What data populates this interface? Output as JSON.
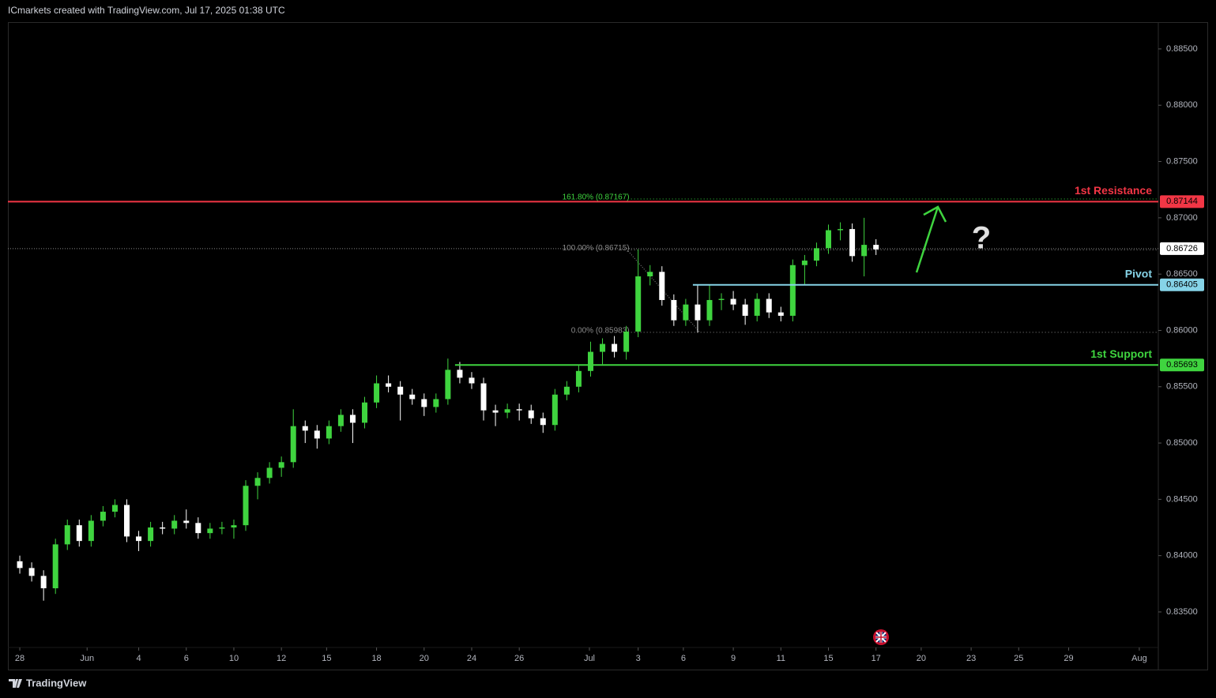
{
  "header": "ICmarkets created with TradingView.com, Jul 17, 2025 01:38 UTC",
  "footer": "TradingView",
  "chart_data": {
    "type": "candlestick",
    "up_color": "#3fd43f",
    "down_color": "#ffffff",
    "x": [
      0,
      0.5,
      1,
      1.5,
      2,
      2.5,
      3,
      3.5,
      4,
      4.5,
      5,
      5.5,
      6,
      6.5,
      7,
      7.5,
      8,
      8.5,
      9,
      9.5,
      10,
      10.5,
      11,
      11.5,
      12,
      12.5,
      13,
      13.5,
      14,
      14.5,
      15,
      15.5,
      16,
      16.5,
      17,
      17.5,
      18,
      18.5,
      19,
      19.5,
      20,
      20.5,
      21,
      21.5,
      22,
      22.5,
      23,
      23.5,
      24,
      24.5,
      25,
      25.5,
      26,
      26.5,
      27,
      27.5,
      28,
      28.5,
      29,
      29.5,
      30,
      30.5,
      31,
      31.5,
      32,
      32.5,
      33,
      33.5,
      34,
      34.5,
      35,
      35.5,
      36
    ],
    "open": [
      0.8395,
      0.8389,
      0.8382,
      0.8371,
      0.841,
      0.8427,
      0.8413,
      0.8431,
      0.8439,
      0.8445,
      0.8417,
      0.8413,
      0.8425,
      0.8424,
      0.8431,
      0.8429,
      0.842,
      0.8424,
      0.8425,
      0.8427,
      0.8462,
      0.8469,
      0.8478,
      0.8483,
      0.8515,
      0.8511,
      0.8504,
      0.8515,
      0.8525,
      0.8518,
      0.8536,
      0.8553,
      0.855,
      0.8543,
      0.8539,
      0.8532,
      0.8539,
      0.8565,
      0.8558,
      0.8553,
      0.8529,
      0.8527,
      0.853,
      0.8529,
      0.8522,
      0.8516,
      0.8543,
      0.855,
      0.8564,
      0.8581,
      0.8588,
      0.8581,
      0.8599,
      0.8648,
      0.8652,
      0.8627,
      0.8609,
      0.8623,
      0.8609,
      0.8627,
      0.8628,
      0.8623,
      0.8613,
      0.8628,
      0.8616,
      0.8613,
      0.8658,
      0.8662,
      0.8673,
      0.8689,
      0.869,
      0.8666,
      0.8676
    ],
    "high": [
      0.84,
      0.8394,
      0.8387,
      0.8415,
      0.8432,
      0.8432,
      0.8436,
      0.8444,
      0.845,
      0.845,
      0.8422,
      0.843,
      0.843,
      0.8436,
      0.8441,
      0.8434,
      0.8429,
      0.843,
      0.8432,
      0.8467,
      0.8474,
      0.8483,
      0.8488,
      0.853,
      0.852,
      0.8516,
      0.852,
      0.853,
      0.853,
      0.8541,
      0.856,
      0.856,
      0.8555,
      0.8548,
      0.8544,
      0.8544,
      0.8575,
      0.8572,
      0.8563,
      0.8558,
      0.8534,
      0.8535,
      0.8535,
      0.8534,
      0.8527,
      0.8548,
      0.8555,
      0.8569,
      0.859,
      0.8593,
      0.8595,
      0.8604,
      0.8672,
      0.8658,
      0.8657,
      0.8632,
      0.8628,
      0.864,
      0.864,
      0.8633,
      0.8635,
      0.8628,
      0.8633,
      0.8633,
      0.8621,
      0.8663,
      0.8667,
      0.8678,
      0.8694,
      0.8696,
      0.8695,
      0.87,
      0.8681
    ],
    "low": [
      0.8384,
      0.8377,
      0.836,
      0.8366,
      0.8405,
      0.8408,
      0.8408,
      0.8426,
      0.8434,
      0.8412,
      0.8404,
      0.8408,
      0.8419,
      0.8419,
      0.8424,
      0.8415,
      0.8415,
      0.8419,
      0.8415,
      0.8422,
      0.845,
      0.8464,
      0.847,
      0.8478,
      0.85,
      0.8495,
      0.8499,
      0.851,
      0.85,
      0.8513,
      0.8531,
      0.8545,
      0.852,
      0.8534,
      0.8524,
      0.8527,
      0.8534,
      0.8553,
      0.8548,
      0.852,
      0.8515,
      0.8522,
      0.852,
      0.8517,
      0.8509,
      0.8511,
      0.8538,
      0.8545,
      0.8559,
      0.857,
      0.8576,
      0.8574,
      0.8594,
      0.864,
      0.8622,
      0.8604,
      0.8604,
      0.8598,
      0.8604,
      0.8618,
      0.8618,
      0.8605,
      0.8608,
      0.8611,
      0.8608,
      0.8608,
      0.864,
      0.8657,
      0.8668,
      0.868,
      0.8661,
      0.8648,
      0.8667
    ],
    "close": [
      0.8389,
      0.8382,
      0.8371,
      0.841,
      0.8427,
      0.8413,
      0.8431,
      0.8439,
      0.8445,
      0.8417,
      0.8413,
      0.8425,
      0.8424,
      0.8431,
      0.8429,
      0.842,
      0.8424,
      0.8425,
      0.8427,
      0.8462,
      0.8469,
      0.8478,
      0.8483,
      0.8515,
      0.8511,
      0.8504,
      0.8515,
      0.8525,
      0.8518,
      0.8536,
      0.8553,
      0.855,
      0.8543,
      0.8539,
      0.8532,
      0.8539,
      0.8565,
      0.8558,
      0.8553,
      0.8529,
      0.8527,
      0.853,
      0.8529,
      0.8522,
      0.8516,
      0.8543,
      0.855,
      0.8564,
      0.8581,
      0.8588,
      0.8581,
      0.8599,
      0.8648,
      0.8652,
      0.8627,
      0.8609,
      0.8623,
      0.8609,
      0.8627,
      0.8628,
      0.8623,
      0.8613,
      0.8628,
      0.8616,
      0.8613,
      0.8658,
      0.8662,
      0.8673,
      0.8689,
      0.869,
      0.8666,
      0.8676,
      0.8672
    ],
    "xlim": [
      -0.5,
      47.87
    ],
    "xticks": [
      {
        "value": 0,
        "label": "28"
      },
      {
        "value": 2.83,
        "label": "Jun"
      },
      {
        "value": 5,
        "label": "4"
      },
      {
        "value": 7,
        "label": "6"
      },
      {
        "value": 9,
        "label": "10"
      },
      {
        "value": 11,
        "label": "12"
      },
      {
        "value": 12.9,
        "label": "15"
      },
      {
        "value": 15,
        "label": "18"
      },
      {
        "value": 17,
        "label": "20"
      },
      {
        "value": 19,
        "label": "24"
      },
      {
        "value": 21,
        "label": "26"
      },
      {
        "value": 23.95,
        "label": "Jul"
      },
      {
        "value": 26,
        "label": "3"
      },
      {
        "value": 27.9,
        "label": "6"
      },
      {
        "value": 30,
        "label": "9"
      },
      {
        "value": 32,
        "label": "11"
      },
      {
        "value": 34,
        "label": "15"
      },
      {
        "value": 36,
        "label": "17"
      },
      {
        "value": 37.9,
        "label": "20"
      },
      {
        "value": 40,
        "label": "23"
      },
      {
        "value": 42,
        "label": "25"
      },
      {
        "value": 44.1,
        "label": "29"
      },
      {
        "value": 47.07,
        "label": "Aug"
      }
    ],
    "ylim": [
      0.82988,
      0.88738
    ],
    "yticks": [
      {
        "value": 0.835,
        "label": "0.83500"
      },
      {
        "value": 0.84,
        "label": "0.84000"
      },
      {
        "value": 0.845,
        "label": "0.84500"
      },
      {
        "value": 0.85,
        "label": "0.85000"
      },
      {
        "value": 0.855,
        "label": "0.85500"
      },
      {
        "value": 0.86,
        "label": "0.86000"
      },
      {
        "value": 0.865,
        "label": "0.86500"
      },
      {
        "value": 0.87,
        "label": "0.87000"
      },
      {
        "value": 0.875,
        "label": "0.87500"
      },
      {
        "value": 0.88,
        "label": "0.88000"
      },
      {
        "value": 0.885,
        "label": "0.88500"
      }
    ],
    "levels": [
      {
        "name": "1st Resistance",
        "value": 0.87144,
        "color": "#f23645",
        "from": -0.5
      },
      {
        "name": "Pivot",
        "value": 0.86405,
        "color": "#86d4e8",
        "from": 28.3
      },
      {
        "name": "1st Support",
        "value": 0.85693,
        "color": "#3fd43f",
        "from": 18.3
      }
    ],
    "fib_levels": [
      {
        "label": "161.80% (0.87167)",
        "value": 0.87167,
        "color": "#3fd43f",
        "from": 25.7
      },
      {
        "label": "100.00% (0.86715)",
        "value": 0.86715,
        "color": "#8a8a8a",
        "from": 25.7
      },
      {
        "label": "0.00% (0.85983)",
        "value": 0.85983,
        "color": "#8a8a8a",
        "from": 25.7
      }
    ],
    "last_price": 0.86726,
    "annotation": "?"
  }
}
